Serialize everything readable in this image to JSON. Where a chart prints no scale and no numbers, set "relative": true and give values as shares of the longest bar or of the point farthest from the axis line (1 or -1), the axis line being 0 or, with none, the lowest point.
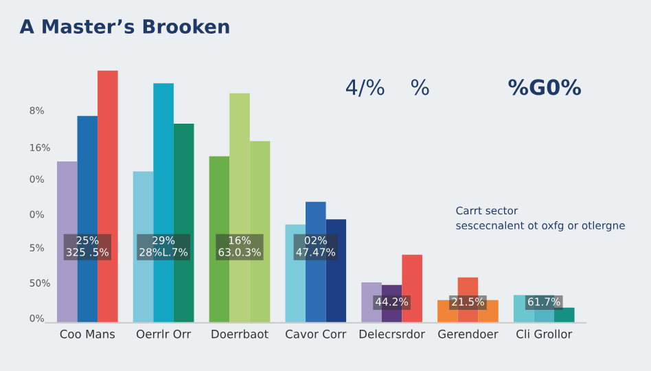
{
  "chart_data": {
    "type": "bar",
    "title": "A Master’s Brooken",
    "relative": true,
    "categories": [
      "Coo Mans",
      "Oerrlr Orr",
      "Doerrbaot",
      "Cavor Corr",
      "Delecrsrdor",
      "Gerendoer",
      "Cli Grollor"
    ],
    "series": [
      {
        "colors": [
          "#a79bc8",
          "#7fc8dc",
          "#6aaf48",
          "#7ccbdc",
          "#a99cc8",
          "#f08538",
          "#6cc6cf"
        ],
        "values": [
          0.64,
          0.6,
          0.66,
          0.39,
          0.16,
          0.09,
          0.11
        ]
      },
      {
        "colors": [
          "#1f6fb0",
          "#13a6c4",
          "#b5d27a",
          "#2e6db4",
          "#5b3a7e",
          "#e8634a",
          "#52b5c4"
        ],
        "values": [
          0.82,
          0.95,
          0.91,
          0.48,
          0.15,
          0.18,
          0.11
        ]
      },
      {
        "colors": [
          "#e9554e",
          "#148a6a",
          "#a8cc6e",
          "#1d3f85",
          "#e9554e",
          "#f08538",
          "#159182"
        ],
        "values": [
          1.0,
          0.79,
          0.72,
          0.41,
          0.27,
          0.09,
          0.06
        ]
      }
    ],
    "annotations": [
      "4/%",
      "%",
      "%G0%",
      "Carrt sector",
      "sescecnalent ot oxfg or otlergne",
      "8%",
      "16%",
      "0%",
      "0%",
      "5%",
      "50%",
      "0%",
      "25%\n325 .5%",
      "29%\n28%L.7%",
      "16%\n63.0.3%",
      "02%\n47.47%",
      "44.2%",
      "21.5%",
      "61.7%"
    ]
  }
}
